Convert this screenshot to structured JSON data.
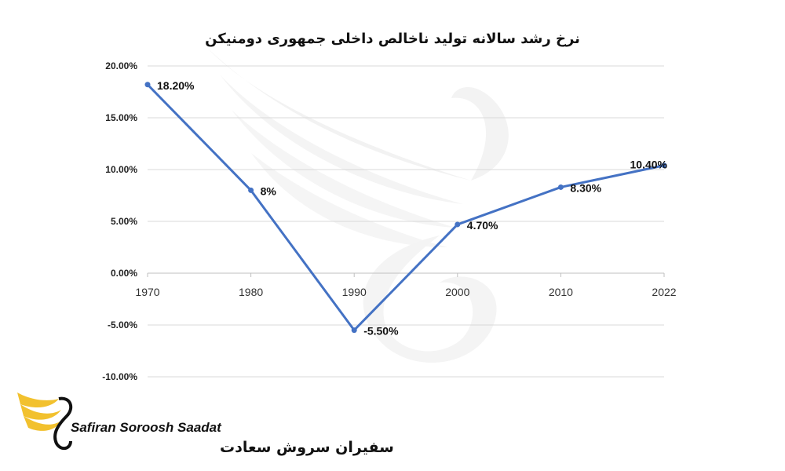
{
  "chart_data": {
    "type": "line",
    "title": "نرخ رشد سالانه تولید ناخالص داخلی جمهوری دومنیکن",
    "xlabel": "",
    "ylabel": "",
    "categories": [
      "1970",
      "1980",
      "1990",
      "2000",
      "2010",
      "2022"
    ],
    "series": [
      {
        "values": [
          18.2,
          8,
          -5.5,
          4.7,
          8.3,
          10.4
        ],
        "labels": [
          "18.20%",
          "8%",
          "-5.50%",
          "4.70%",
          "8.30%",
          "10.40%"
        ],
        "color": "#4472C4"
      }
    ],
    "yticks": [
      "20.00%",
      "15.00%",
      "10.00%",
      "5.00%",
      "0.00%",
      "-5.00%",
      "-10.00%"
    ],
    "ylim": [
      -10,
      20
    ],
    "grid": true,
    "legend": "none"
  },
  "logo": {
    "text_en": "Safiran Soroosh Saadat",
    "text_fa": "سفیران سروش سعادت",
    "accent_color": "#F2C12E"
  }
}
